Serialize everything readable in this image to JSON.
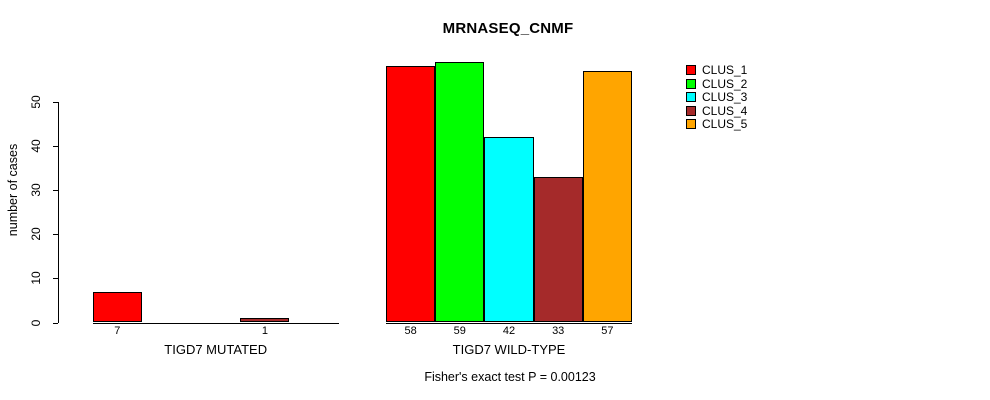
{
  "chart_data": {
    "type": "bar",
    "title": "MRNASEQ_CNMF",
    "ylabel": "number of cases",
    "xlabel": "",
    "yticks": [
      0,
      10,
      20,
      30,
      40,
      50
    ],
    "ylim": [
      0,
      59
    ],
    "grid": false,
    "legend_position": "right",
    "axis_color": "#000000",
    "legend": [
      {
        "label": "CLUS_1",
        "color": "#ff0000"
      },
      {
        "label": "CLUS_2",
        "color": "#00ff00"
      },
      {
        "label": "CLUS_3",
        "color": "#00ffff"
      },
      {
        "label": "CLUS_4",
        "color": "#a52a2a"
      },
      {
        "label": "CLUS_5",
        "color": "#ffa500"
      }
    ],
    "groups": [
      {
        "label": "TIGD7 MUTATED",
        "values": [
          7,
          0,
          0,
          1,
          0
        ]
      },
      {
        "label": "TIGD7 WILD-TYPE",
        "values": [
          58,
          59,
          42,
          33,
          57
        ]
      }
    ],
    "annotation": "Fisher's exact test P = 0.00123"
  }
}
